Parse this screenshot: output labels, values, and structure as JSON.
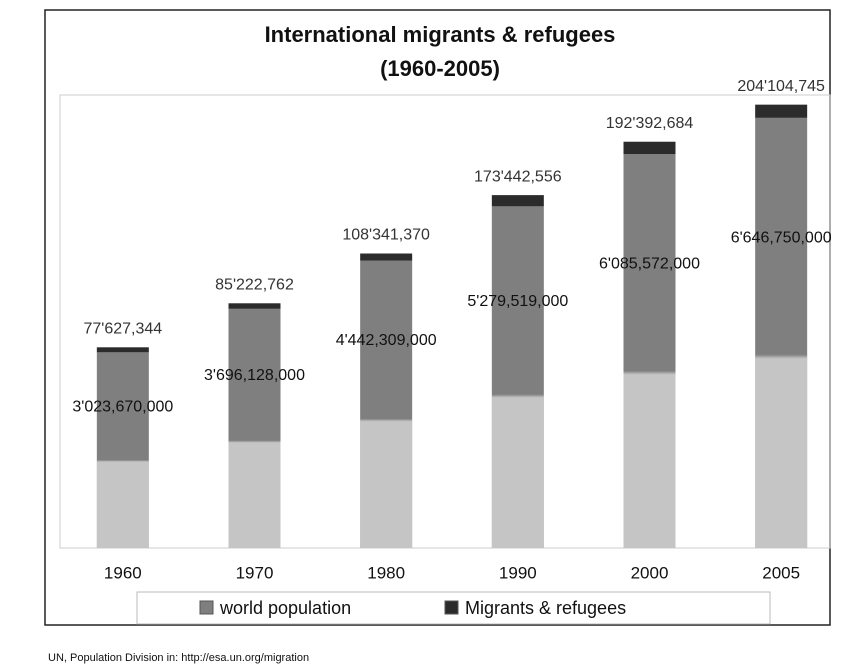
{
  "chart_data": {
    "type": "stacked-bar",
    "title": "International migrants & refugees",
    "subtitle": "(1960-2005)",
    "categories": [
      "1960",
      "1970",
      "1980",
      "1990",
      "2000",
      "2005"
    ],
    "series": [
      {
        "name": "world population",
        "color": "#7f7f7f",
        "values": [
          3023670000,
          3696128000,
          4442309000,
          5279519000,
          6085572000,
          6646750000
        ],
        "value_labels": [
          "3'023,670,000",
          "3'696,128,000",
          "4'442,309,000",
          "5'279,519,000",
          "6'085,572,000",
          "6'646,750,000"
        ]
      },
      {
        "name": "Migrants & refugees",
        "color": "#2b2b2b",
        "values": [
          77627344,
          85222762,
          108341370,
          173442556,
          192392684,
          204104745
        ],
        "value_labels": [
          "77'627,344",
          "85'222,762",
          "108'341,370",
          "173'442,556",
          "192'392,684",
          "204'104,745"
        ]
      }
    ],
    "ylim": [
      0,
      7000000000
    ],
    "source": "UN, Population Division in: http://esa.un.org/migration"
  }
}
